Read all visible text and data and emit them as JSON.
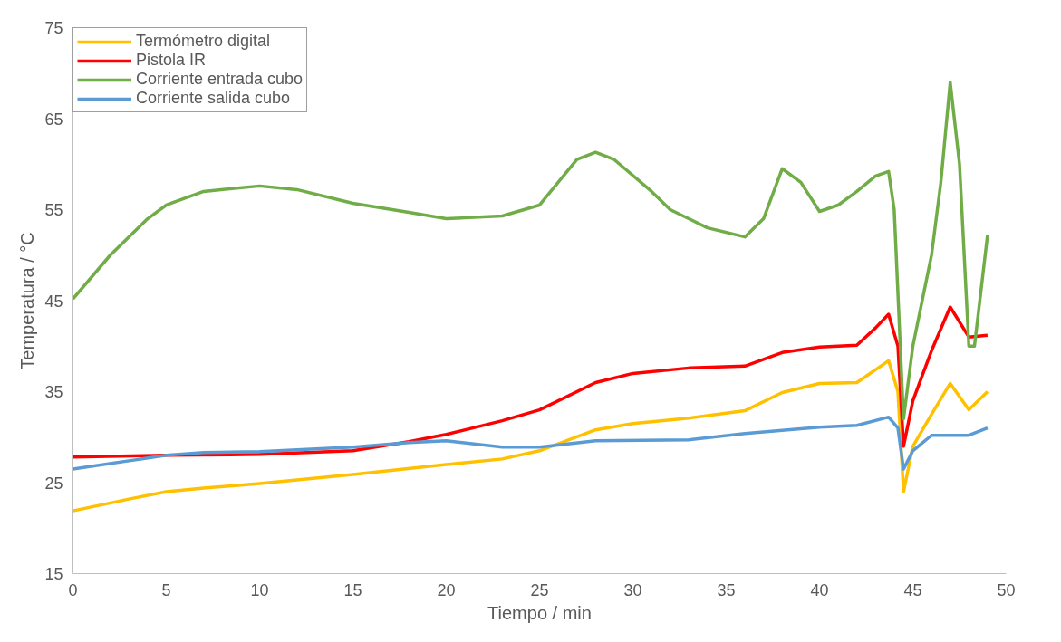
{
  "chart_data": {
    "type": "line",
    "xlabel": "Tiempo / min",
    "ylabel": "Temperatura / °C",
    "xlim": [
      0,
      50
    ],
    "xticks": [
      0,
      5,
      10,
      15,
      20,
      25,
      30,
      35,
      40,
      45,
      50
    ],
    "ylim": [
      15,
      75
    ],
    "yticks": [
      15,
      25,
      35,
      45,
      55,
      65,
      75
    ],
    "grid": false,
    "legend": "top left",
    "marker": "none",
    "line_style": "solid",
    "series": [
      {
        "name": "Termómetro digital",
        "color": "#ffc000",
        "x": [
          0,
          3,
          5,
          7,
          10,
          15,
          20,
          23,
          25,
          28,
          30,
          33,
          36,
          38,
          40,
          42,
          43.7,
          44.2,
          44.5,
          45,
          46,
          47,
          48,
          49
        ],
        "values": [
          21.9,
          23.2,
          24,
          24.4,
          24.9,
          25.9,
          27,
          27.6,
          28.5,
          30.8,
          31.5,
          32.1,
          32.9,
          34.9,
          35.9,
          36,
          38.4,
          35,
          24,
          29,
          32.5,
          35.9,
          33,
          35
        ]
      },
      {
        "name": "Pistola IR",
        "color": "#ff0000",
        "x": [
          0,
          5,
          10,
          15,
          18,
          20,
          23,
          25,
          28,
          30,
          33,
          36,
          38,
          40,
          42,
          43,
          43.7,
          44.2,
          44.5,
          45,
          46,
          47,
          48,
          49
        ],
        "values": [
          27.8,
          28,
          28.1,
          28.5,
          29.5,
          30.3,
          31.8,
          33,
          36,
          37,
          37.6,
          37.8,
          39.3,
          39.9,
          40.1,
          42,
          43.5,
          40,
          29,
          34,
          39.5,
          44.3,
          41,
          41.2
        ]
      },
      {
        "name": "Corriente entrada cubo",
        "color": "#70ad47",
        "x": [
          0,
          2,
          4,
          5,
          7,
          10,
          12,
          15,
          18,
          20,
          23,
          25,
          27,
          28,
          29,
          31,
          32,
          34,
          36,
          37,
          38,
          39,
          40,
          41,
          42,
          43,
          43.7,
          44,
          44.5,
          45,
          46,
          46.5,
          47,
          47.5,
          48,
          48.3,
          49
        ],
        "values": [
          45.2,
          50,
          54,
          55.5,
          57,
          57.6,
          57.2,
          55.7,
          54.7,
          54,
          54.3,
          55.5,
          60.5,
          61.3,
          60.5,
          57,
          55,
          53,
          52,
          54,
          59.5,
          58,
          54.8,
          55.5,
          57,
          58.7,
          59.2,
          55,
          32,
          40,
          50,
          58,
          69,
          60,
          40,
          40,
          52.2
        ]
      },
      {
        "name": "Corriente salida cubo",
        "color": "#5b9bd5",
        "x": [
          0,
          3,
          5,
          7,
          10,
          15,
          18,
          20,
          23,
          25,
          28,
          33,
          36,
          40,
          42,
          43.7,
          44.2,
          44.5,
          45,
          46,
          47,
          48,
          49
        ],
        "values": [
          26.5,
          27.4,
          28,
          28.3,
          28.4,
          28.9,
          29.4,
          29.6,
          28.9,
          28.9,
          29.6,
          29.7,
          30.4,
          31.1,
          31.3,
          32.2,
          31,
          26.5,
          28.5,
          30.2,
          30.2,
          30.2,
          31
        ]
      }
    ]
  }
}
